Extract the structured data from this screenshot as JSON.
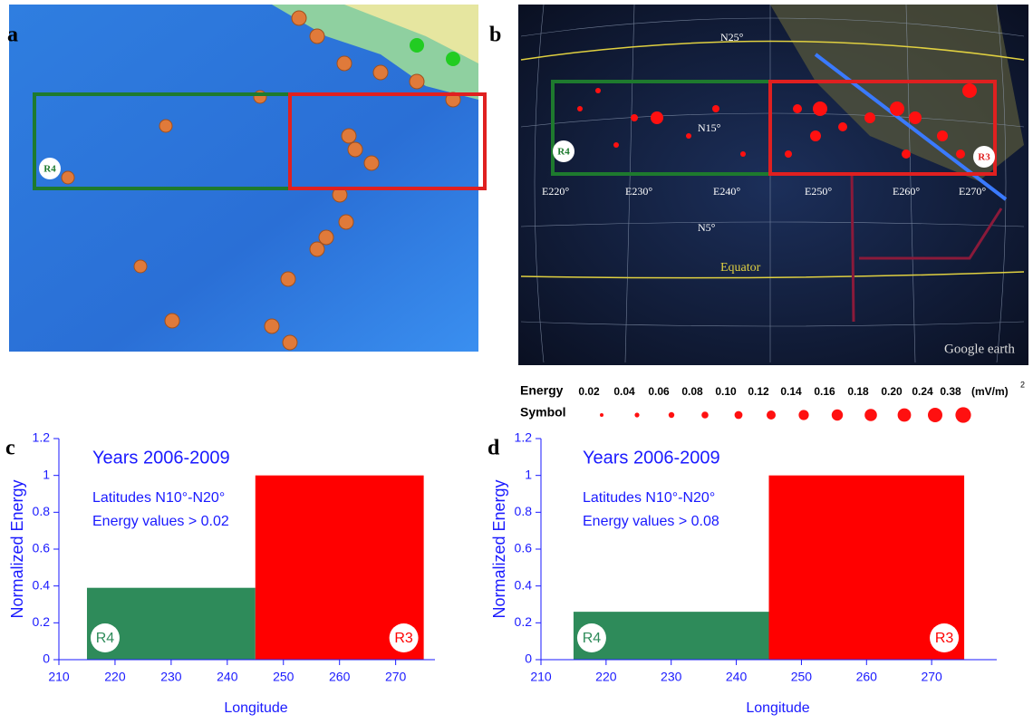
{
  "chart_data": [
    {
      "type": "histogram",
      "panel": "c",
      "title": "Years 2006-2009",
      "annotations": [
        "Latitudes N10°-N20°",
        "Energy values > 0.02"
      ],
      "ylabel": "Normalized Energy",
      "xlabel": "Longitude",
      "categories": [
        "R4",
        "R3"
      ],
      "bins": [
        215,
        245,
        275
      ],
      "values": [
        0.39,
        1
      ],
      "colors": [
        "#2e8b5a",
        "#ff0000"
      ],
      "xlim": [
        210,
        277
      ],
      "xticks": [
        210,
        220,
        230,
        240,
        250,
        260,
        270
      ],
      "ylim": [
        0,
        1.2
      ],
      "yticks": [
        0,
        0.2,
        0.4,
        0.6,
        0.8,
        1,
        1.2
      ]
    },
    {
      "type": "histogram",
      "panel": "d",
      "title": "Years 2006-2009",
      "annotations": [
        "Latitudes N10°-N20°",
        "Energy values > 0.08"
      ],
      "ylabel": "Normalized Energy",
      "xlabel": "Longitude",
      "categories": [
        "R4",
        "R3"
      ],
      "bins": [
        215,
        245,
        275
      ],
      "values": [
        0.26,
        1
      ],
      "colors": [
        "#2e8b5a",
        "#ff0000"
      ],
      "xlim": [
        210,
        280
      ],
      "xticks": [
        210,
        220,
        230,
        240,
        250,
        260,
        270
      ],
      "ylim": [
        0,
        1.2
      ],
      "yticks": [
        0,
        0.2,
        0.4,
        0.6,
        0.8,
        1,
        1.2
      ]
    }
  ],
  "panel_a": {
    "label": "a",
    "region": "R4"
  },
  "panel_b": {
    "label": "b",
    "latitudes": [
      "N25°",
      "N15°",
      "N5°"
    ],
    "equator": "Equator",
    "longitudes": [
      "E220°",
      "E230°",
      "E240°",
      "E250°",
      "E260°",
      "E270°"
    ],
    "regions": [
      "R4",
      "R3"
    ],
    "credit": "Google earth"
  },
  "legend": {
    "energy_label": "Energy",
    "energies": [
      "0.02",
      "0.04",
      "0.06",
      "0.08",
      "0.10",
      "0.12",
      "0.14",
      "0.16",
      "0.18",
      "0.20",
      "0.24",
      "0.38"
    ],
    "unit": "(mV/m)",
    "unit_power": "2",
    "symbol_label": "Symbol"
  }
}
